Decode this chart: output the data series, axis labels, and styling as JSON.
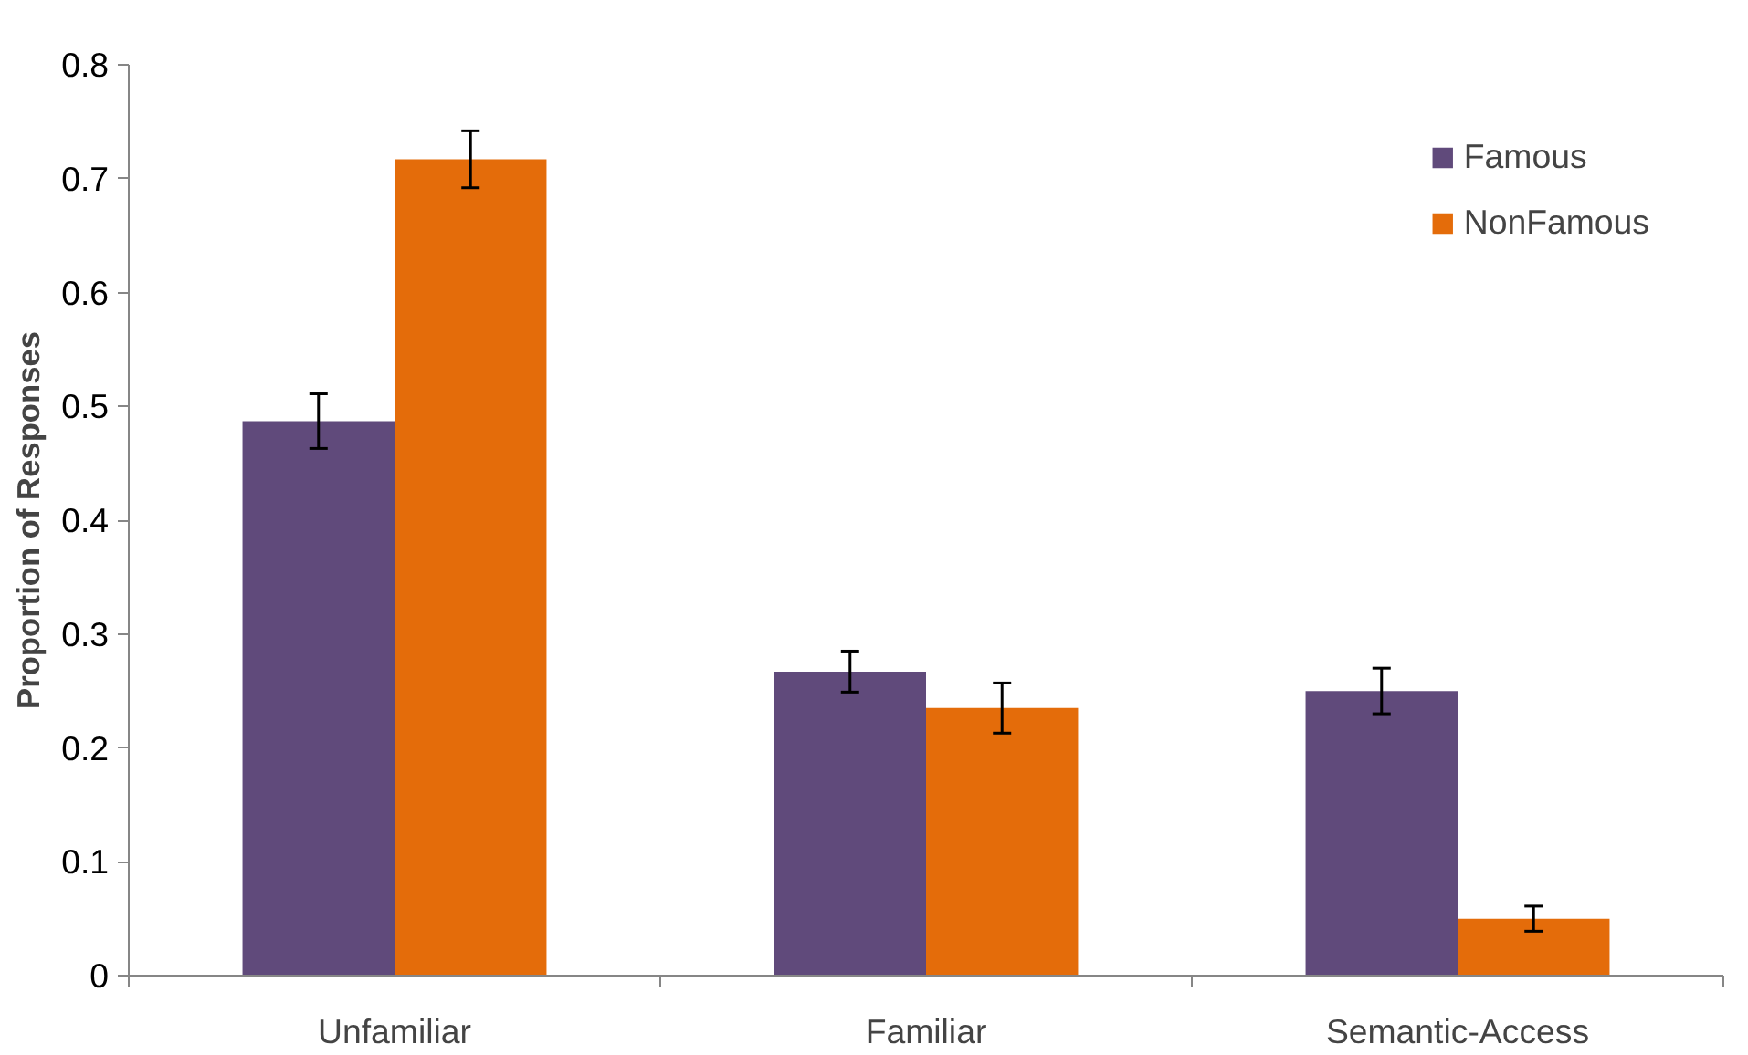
{
  "chart_data": {
    "type": "bar",
    "ylabel": "Proportion of Responses",
    "categories": [
      "Unfamiliar",
      "Familiar",
      "Semantic-Access"
    ],
    "series": [
      {
        "name": "Famous",
        "color": "#604a7b",
        "values": [
          0.487,
          0.267,
          0.25
        ],
        "errors": [
          0.024,
          0.018,
          0.02
        ]
      },
      {
        "name": "NonFamous",
        "color": "#e46c0a",
        "values": [
          0.717,
          0.235,
          0.05
        ],
        "errors": [
          0.025,
          0.022,
          0.011
        ]
      }
    ],
    "ylim": [
      0,
      0.8
    ],
    "yticks": [
      0,
      0.1,
      0.2,
      0.3,
      0.4,
      0.5,
      0.6,
      0.7,
      0.8
    ],
    "grid": false,
    "legend": "top right"
  }
}
